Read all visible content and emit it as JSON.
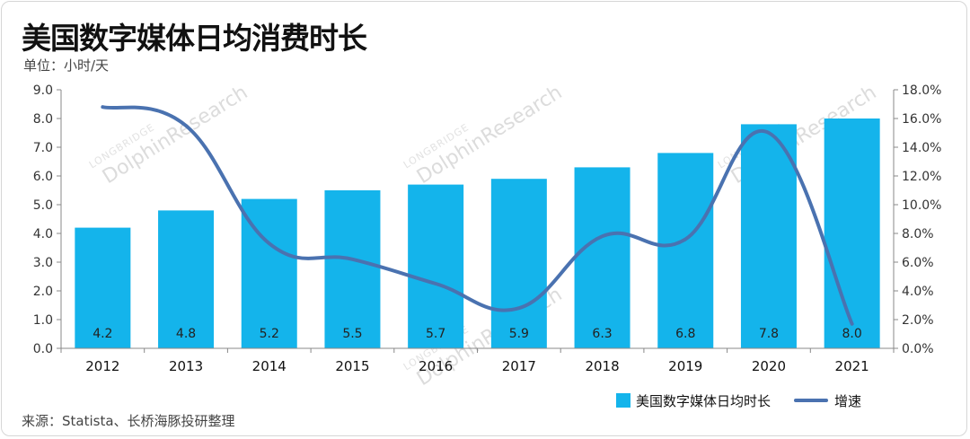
{
  "header": {
    "title": "美国数字媒体日均消费时长",
    "unit": "单位：小时/天"
  },
  "footer": {
    "source": "来源：Statista、长桥海豚投研整理"
  },
  "watermark": {
    "brand": "DolphinResearch",
    "sub": "LONGBRIDGE"
  },
  "colors": {
    "bar": "#14B4EB",
    "line": "#4A72B0",
    "axis": "#888888"
  },
  "chart_data": {
    "type": "bar",
    "categories": [
      "2012",
      "2013",
      "2014",
      "2015",
      "2016",
      "2017",
      "2018",
      "2019",
      "2020",
      "2021"
    ],
    "series": [
      {
        "name": "美国数字媒体日均时长",
        "type": "bar",
        "axis": "left",
        "values": [
          4.2,
          4.8,
          5.2,
          5.5,
          5.7,
          5.9,
          6.3,
          6.8,
          7.8,
          8.0
        ],
        "labels": [
          "4.2",
          "4.8",
          "5.2",
          "5.5",
          "5.7",
          "5.9",
          "6.3",
          "6.8",
          "7.8",
          "8.0"
        ]
      },
      {
        "name": "增速",
        "type": "line",
        "axis": "right",
        "values": [
          16.8,
          15.5,
          7.3,
          6.2,
          4.5,
          2.8,
          7.8,
          7.6,
          15.0,
          1.7
        ]
      }
    ],
    "yleft": {
      "lim": [
        0,
        9
      ],
      "ticks": [
        "0.0",
        "1.0",
        "2.0",
        "3.0",
        "4.0",
        "5.0",
        "6.0",
        "7.0",
        "8.0",
        "9.0"
      ]
    },
    "yright": {
      "lim": [
        0,
        18
      ],
      "ticks": [
        "0.0%",
        "2.0%",
        "4.0%",
        "6.0%",
        "8.0%",
        "10.0%",
        "12.0%",
        "14.0%",
        "16.0%",
        "18.0%"
      ]
    },
    "grid": false,
    "legend": "bottom-right"
  }
}
